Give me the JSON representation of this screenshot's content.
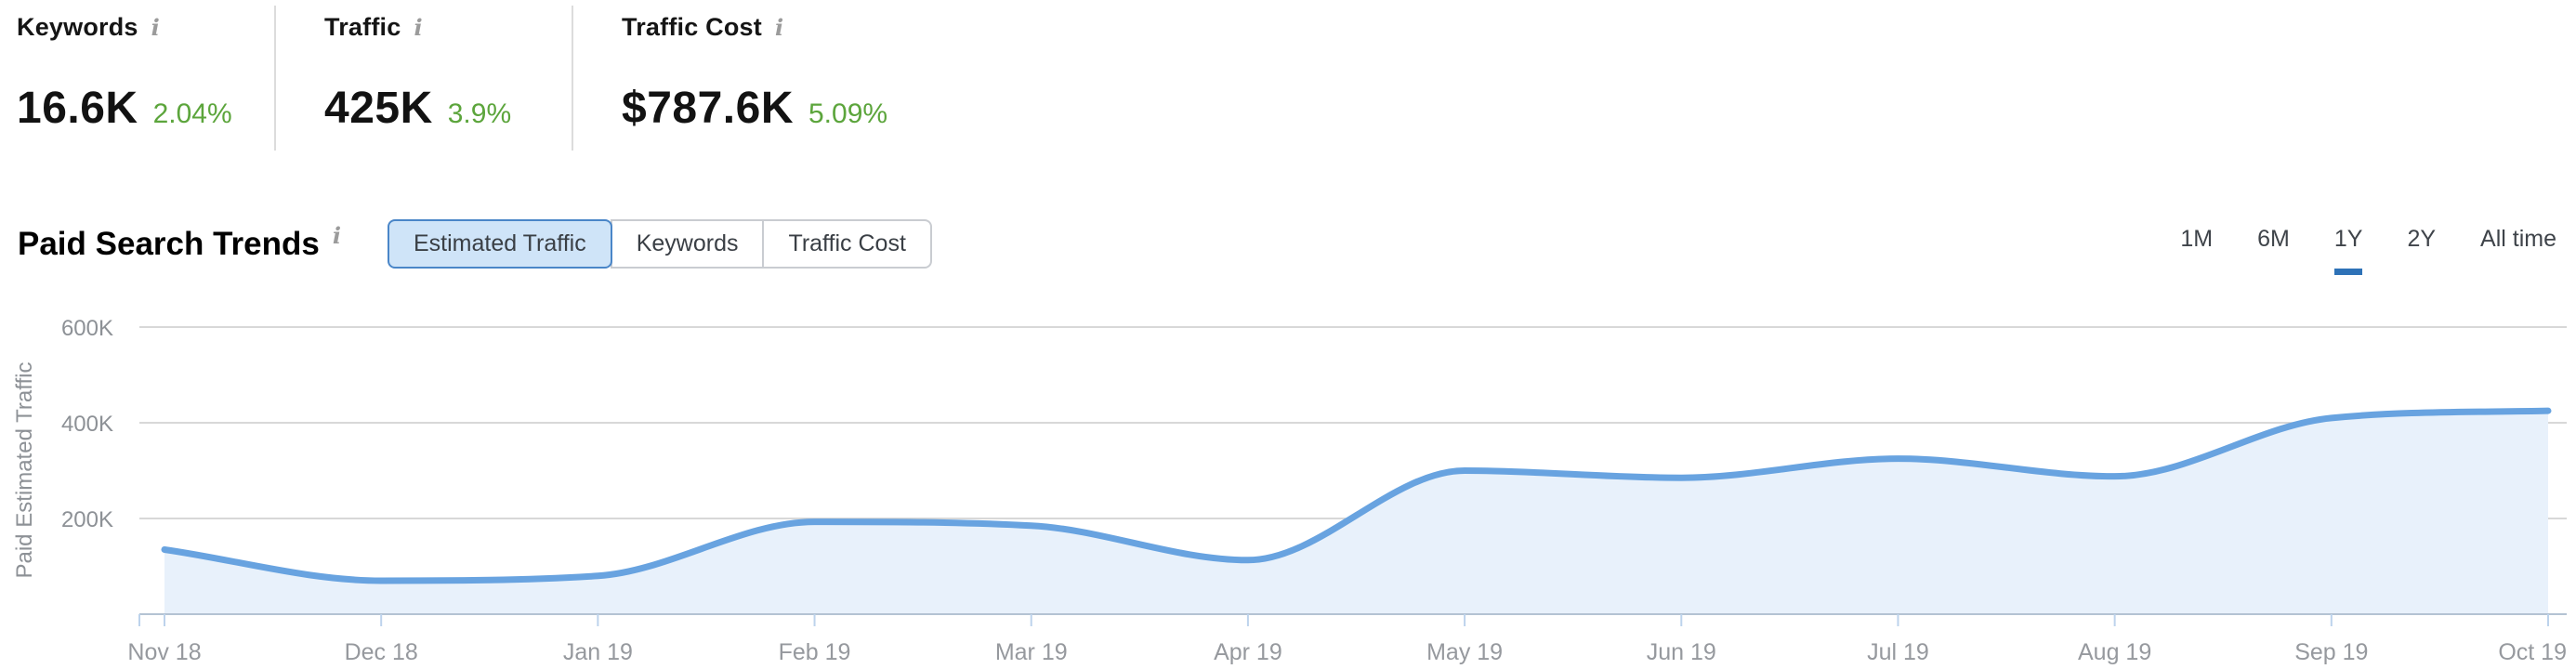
{
  "icons": {
    "info": "i"
  },
  "stats": [
    {
      "label": "Keywords",
      "value": "16.6K",
      "change": "2.04%"
    },
    {
      "label": "Traffic",
      "value": "425K",
      "change": "3.9%"
    },
    {
      "label": "Traffic Cost",
      "value": "$787.6K",
      "change": "5.09%"
    }
  ],
  "section": {
    "title": "Paid Search Trends"
  },
  "toggle": {
    "options": [
      {
        "label": "Estimated Traffic",
        "active": true
      },
      {
        "label": "Keywords",
        "active": false
      },
      {
        "label": "Traffic Cost",
        "active": false
      }
    ]
  },
  "ranges": {
    "options": [
      {
        "label": "1M",
        "active": false
      },
      {
        "label": "6M",
        "active": false
      },
      {
        "label": "1Y",
        "active": true
      },
      {
        "label": "2Y",
        "active": false
      },
      {
        "label": "All time",
        "active": false
      }
    ]
  },
  "colors": {
    "accent_blue": "#2e72b7",
    "active_button_bg": "#cfe4f8",
    "active_button_border": "#4a86c8",
    "positive_green": "#5ca53c",
    "line_blue": "#68a3e0",
    "area_fill": "#e8f1fb"
  },
  "chart_data": {
    "type": "area",
    "title": "Paid Search Trends",
    "ylabel": "Paid Estimated Traffic",
    "xlabel": "",
    "categories": [
      "Nov 18",
      "Dec 18",
      "Jan 19",
      "Feb 19",
      "Mar 19",
      "Apr 19",
      "May 19",
      "Jun 19",
      "Jul 19",
      "Aug 19",
      "Sep 19",
      "Oct 19"
    ],
    "series": [
      {
        "name": "Estimated Traffic",
        "values": [
          135000,
          70000,
          80000,
          193000,
          185000,
          113000,
          300000,
          285000,
          325000,
          288000,
          410000,
          425000
        ]
      }
    ],
    "yticks": [
      {
        "label": "600K",
        "value": 600000
      },
      {
        "label": "400K",
        "value": 400000
      },
      {
        "label": "200K",
        "value": 200000
      }
    ],
    "ylim": [
      0,
      600000
    ],
    "grid": true,
    "legend": "none",
    "smoothing": "monotone-spline"
  }
}
